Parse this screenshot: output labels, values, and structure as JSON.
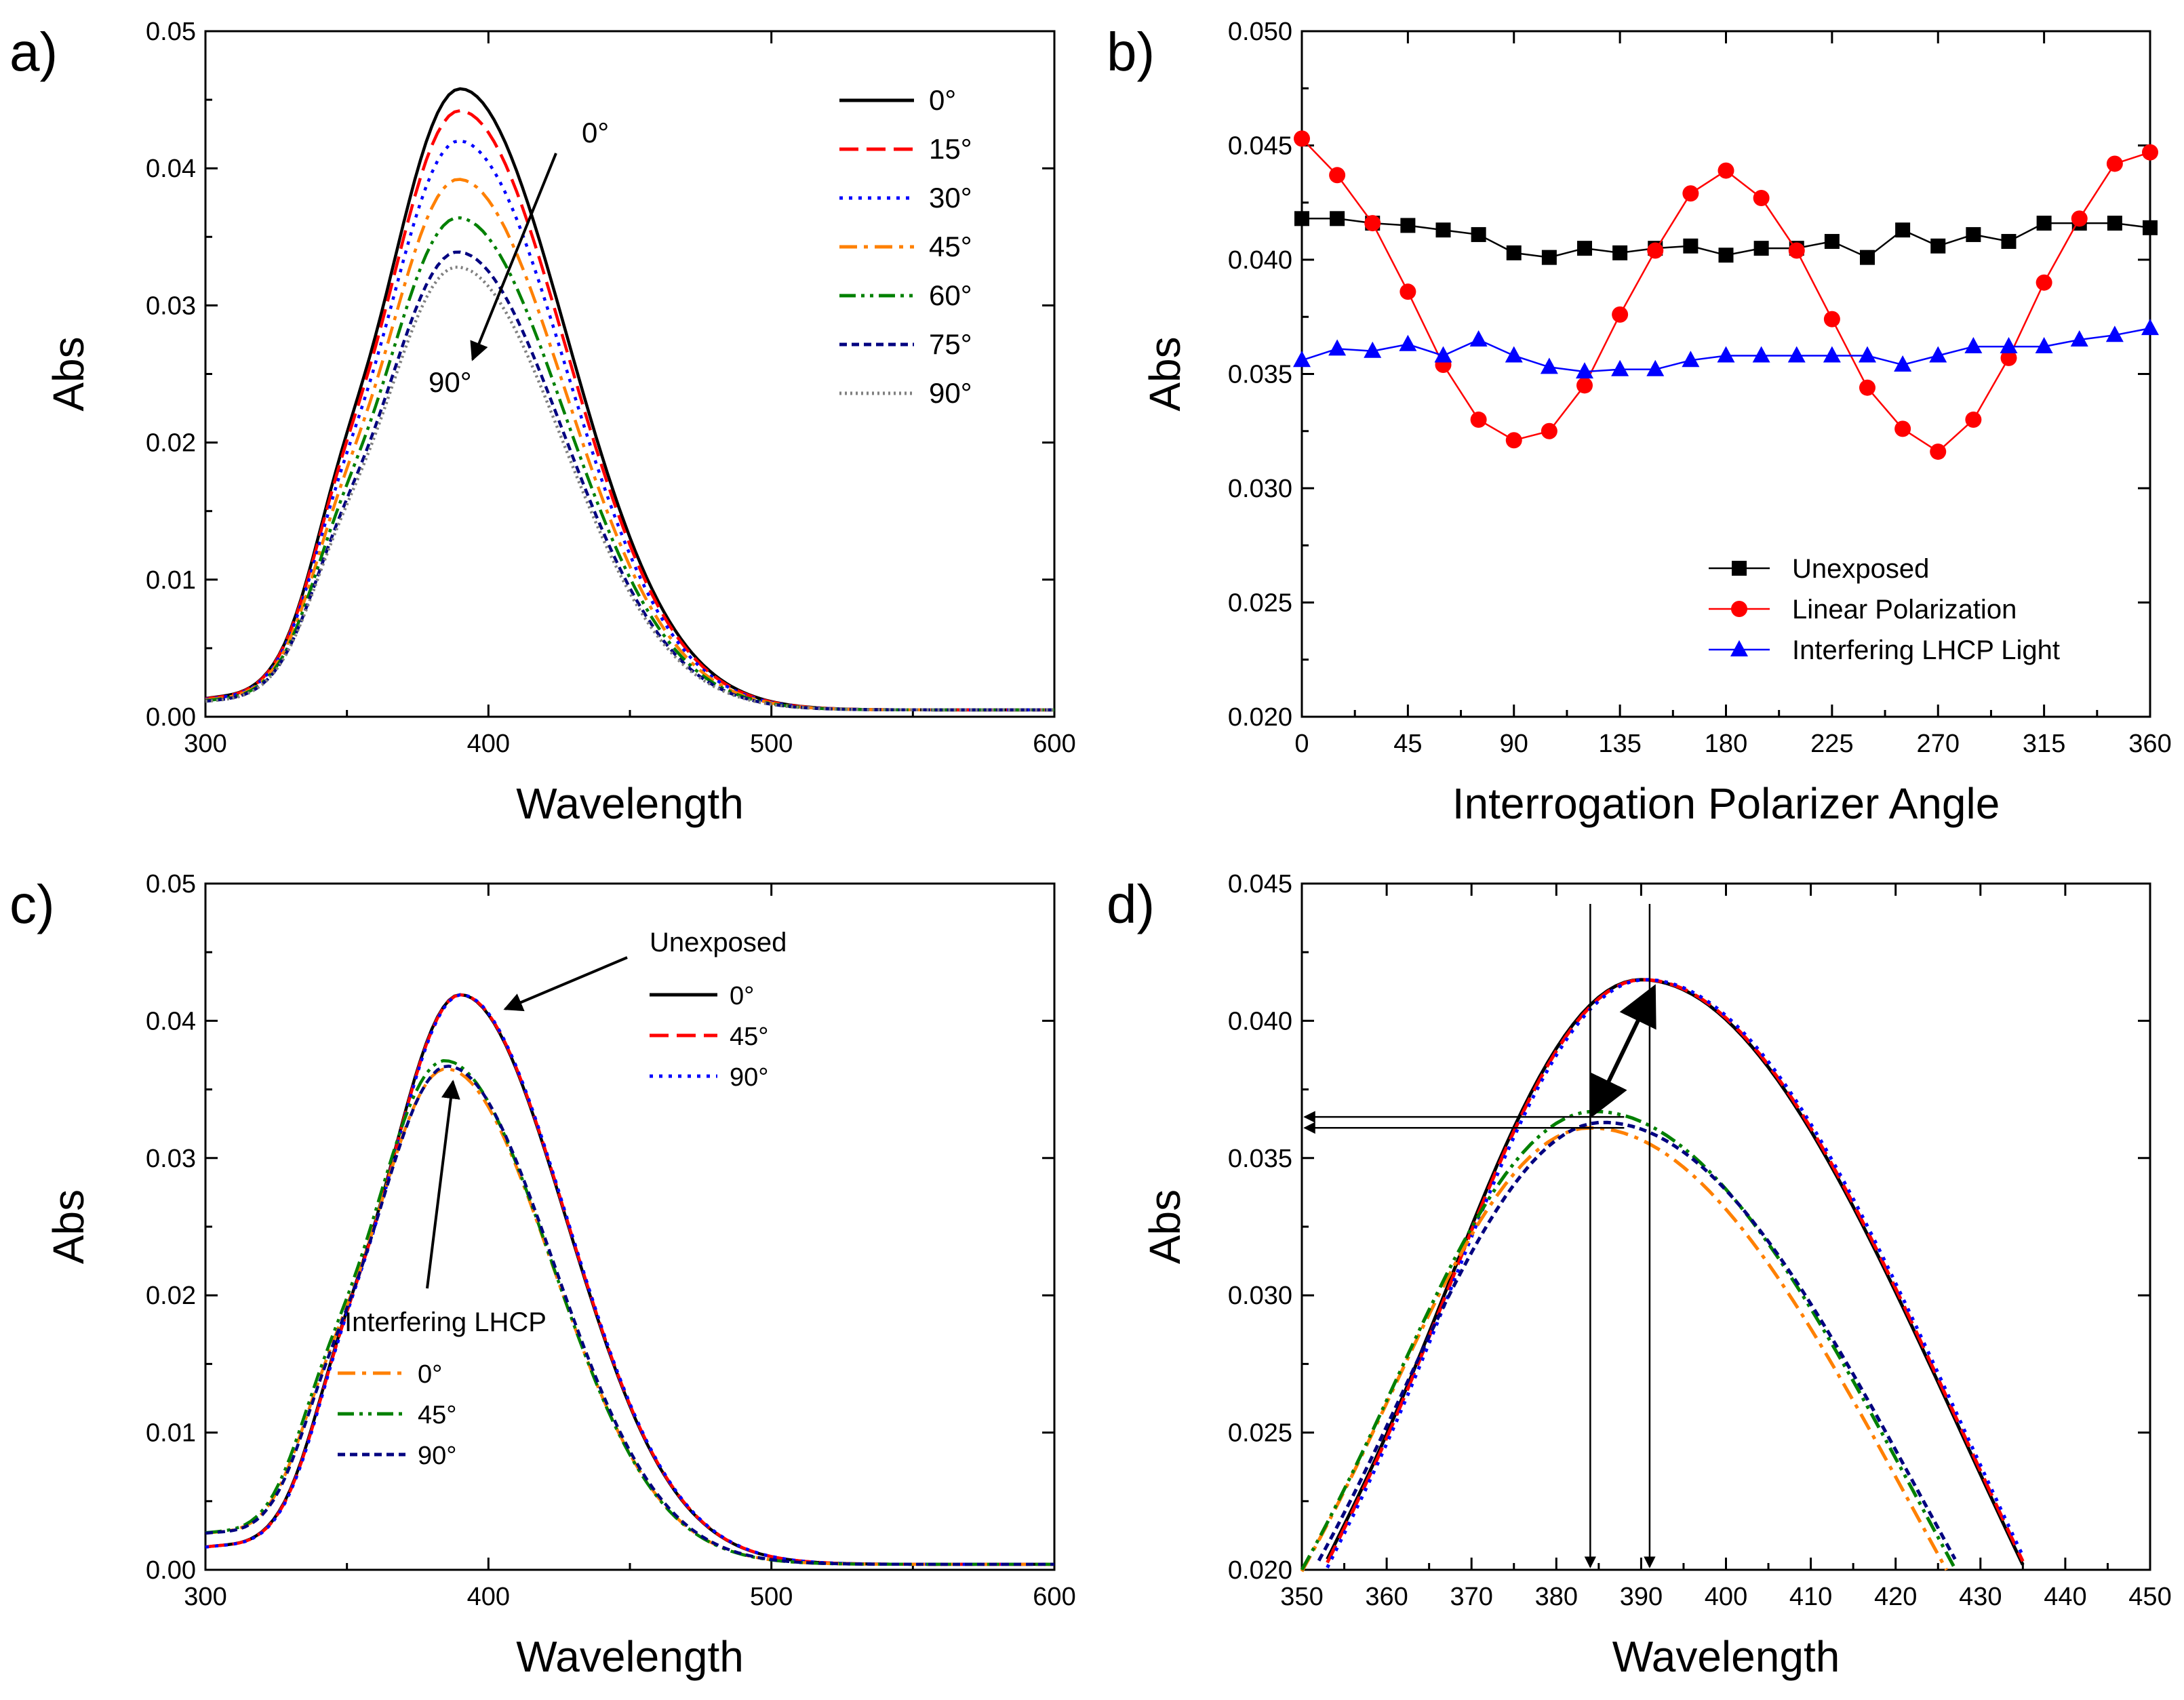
{
  "chart_data": [
    {
      "panel_label": "a)",
      "type": "line",
      "xlabel": "Wavelength",
      "ylabel": "Abs",
      "xlim": [
        300,
        600
      ],
      "ylim": [
        0,
        0.05
      ],
      "x_ticks": [
        "300",
        "400",
        "500",
        "600"
      ],
      "y_ticks": [
        "0.00",
        "0.01",
        "0.02",
        "0.03",
        "0.04",
        "0.05"
      ],
      "series": [
        {
          "name": "0°",
          "color": "#000000",
          "style": "solid",
          "peak": 0.0453
        },
        {
          "name": "15°",
          "color": "#ff0000",
          "style": "dashed",
          "peak": 0.0437
        },
        {
          "name": "30°",
          "color": "#0000ff",
          "style": "dotted",
          "peak": 0.0415
        },
        {
          "name": "45°",
          "color": "#ff8000",
          "style": "dashdot",
          "peak": 0.0387
        },
        {
          "name": "60°",
          "color": "#008000",
          "style": "dashdotdot",
          "peak": 0.0359
        },
        {
          "name": "75°",
          "color": "#000080",
          "style": "shortdash",
          "peak": 0.0334
        },
        {
          "name": "90°",
          "color": "#808080",
          "style": "shortdot",
          "peak": 0.0323
        }
      ],
      "annotations": [
        "0°",
        "90°"
      ]
    },
    {
      "panel_label": "b)",
      "type": "line",
      "xlabel": "Interrogation Polarizer Angle",
      "ylabel": "Abs",
      "xlim": [
        0,
        360
      ],
      "ylim": [
        0.02,
        0.05
      ],
      "x_ticks": [
        "0",
        "45",
        "90",
        "135",
        "180",
        "225",
        "270",
        "315",
        "360"
      ],
      "y_ticks": [
        "0.020",
        "0.025",
        "0.030",
        "0.035",
        "0.040",
        "0.045",
        "0.050"
      ],
      "x": [
        0,
        15,
        30,
        45,
        60,
        75,
        90,
        105,
        120,
        135,
        150,
        165,
        180,
        195,
        210,
        225,
        240,
        255,
        270,
        285,
        300,
        315,
        330,
        345,
        360
      ],
      "series": [
        {
          "name": "Unexposed",
          "color": "#000000",
          "marker": "square",
          "values": [
            0.0418,
            0.0418,
            0.0416,
            0.0415,
            0.0413,
            0.0411,
            0.0403,
            0.0401,
            0.0405,
            0.0403,
            0.0405,
            0.0406,
            0.0402,
            0.0405,
            0.0405,
            0.0408,
            0.0401,
            0.0413,
            0.0406,
            0.0411,
            0.0408,
            0.0416,
            0.0416,
            0.0416,
            0.0414
          ]
        },
        {
          "name": "Linear Polarization",
          "color": "#ff0000",
          "marker": "circle",
          "values": [
            0.0453,
            0.0437,
            0.0416,
            0.0386,
            0.0354,
            0.033,
            0.0321,
            0.0325,
            0.0345,
            0.0376,
            0.0404,
            0.0429,
            0.0439,
            0.0427,
            0.0404,
            0.0374,
            0.0344,
            0.0326,
            0.0316,
            0.033,
            0.0357,
            0.039,
            0.0418,
            0.0442,
            0.0447
          ]
        },
        {
          "name": "Interfering LHCP Light",
          "color": "#0000ff",
          "marker": "triangle",
          "values": [
            0.0356,
            0.0361,
            0.036,
            0.0363,
            0.0358,
            0.0365,
            0.0358,
            0.0353,
            0.0351,
            0.0352,
            0.0352,
            0.0356,
            0.0358,
            0.0358,
            0.0358,
            0.0358,
            0.0358,
            0.0354,
            0.0358,
            0.0362,
            0.0362,
            0.0362,
            0.0365,
            0.0367,
            0.037
          ]
        }
      ],
      "legend_position": "bottom-right"
    },
    {
      "panel_label": "c)",
      "type": "line",
      "xlabel": "Wavelength",
      "ylabel": "Abs",
      "xlim": [
        300,
        600
      ],
      "ylim": [
        0,
        0.05
      ],
      "x_ticks": [
        "300",
        "400",
        "500",
        "600"
      ],
      "y_ticks": [
        "0.00",
        "0.01",
        "0.02",
        "0.03",
        "0.04",
        "0.05"
      ],
      "legend_groups": [
        {
          "title": "Unexposed",
          "series": [
            {
              "name": "0°",
              "color": "#000000",
              "style": "solid",
              "peak": 0.0415
            },
            {
              "name": "45°",
              "color": "#ff0000",
              "style": "dashed",
              "peak": 0.0415
            },
            {
              "name": "90°",
              "color": "#0000ff",
              "style": "dotted",
              "peak": 0.0415
            }
          ]
        },
        {
          "title": "Interfering LHCP",
          "series": [
            {
              "name": "0°",
              "color": "#ff8000",
              "style": "dashdot",
              "peak": 0.0361
            },
            {
              "name": "45°",
              "color": "#008000",
              "style": "dashdotdot",
              "peak": 0.0367
            },
            {
              "name": "90°",
              "color": "#000080",
              "style": "shortdash",
              "peak": 0.0363
            }
          ]
        }
      ]
    },
    {
      "panel_label": "d)",
      "type": "line",
      "xlabel": "Wavelength",
      "ylabel": "Abs",
      "xlim": [
        350,
        450
      ],
      "ylim": [
        0.02,
        0.045
      ],
      "x_ticks": [
        "350",
        "360",
        "370",
        "380",
        "390",
        "400",
        "410",
        "420",
        "430",
        "440",
        "450"
      ],
      "y_ticks": [
        "0.020",
        "0.025",
        "0.030",
        "0.035",
        "0.040",
        "0.045"
      ],
      "markers": {
        "unexposed_peak_nm": 391,
        "lhcp_peak_nm": 384,
        "lhcp_abs_levels": [
          0.0365,
          0.0361
        ]
      }
    }
  ]
}
